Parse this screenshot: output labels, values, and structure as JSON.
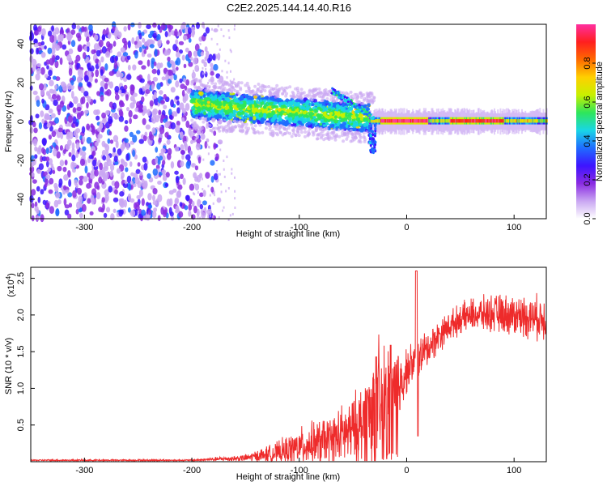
{
  "title": "C2E2.2025.144.14.40.R16",
  "colors": {
    "snr_line": "#ee2b2b",
    "colormap": [
      "#ffffff",
      "#c9a6f2",
      "#8a2be2",
      "#3d14ff",
      "#1f6cff",
      "#19d6e6",
      "#2ee65a",
      "#c8f000",
      "#ffd000",
      "#ff6a00",
      "#ff1f1f",
      "#ff2fa0"
    ]
  },
  "chart_data": [
    {
      "type": "heatmap",
      "name": "spectrogram",
      "xlabel": "Height of straight line (km)",
      "ylabel": "Frequency (Hz)",
      "xlim": [
        -350,
        130
      ],
      "ylim": [
        -50,
        50
      ],
      "x_ticks": [
        -300,
        -200,
        -100,
        0,
        100
      ],
      "y_ticks": [
        -40,
        -20,
        0,
        20,
        40
      ],
      "colorbar": {
        "label": "Normalized spectral amplitude",
        "range": [
          0,
          1
        ],
        "ticks": [
          "0.0",
          "0.2",
          "0.4",
          "0.6",
          "0.8"
        ]
      },
      "regions": [
        {
          "x": [
            -350,
            -200
          ],
          "freq": [
            -50,
            50
          ],
          "amplitude": [
            0.05,
            0.3
          ],
          "description": "scattered noise"
        },
        {
          "x": [
            -200,
            -40
          ],
          "freq_center": [
            9,
            2
          ],
          "amplitude": [
            0.3,
            0.5
          ]
        },
        {
          "x": [
            -40,
            130
          ],
          "freq_center": [
            1,
            0
          ],
          "amplitude": [
            0.5,
            0.95
          ]
        }
      ]
    },
    {
      "type": "line",
      "name": "snr",
      "xlabel": "Height of straight line (km)",
      "ylabel": "SNR (10 * v/v)",
      "y_scale_label": "(x10",
      "y_scale_exp": "4",
      "y_scale_suffix": ")",
      "xlim": [
        -350,
        130
      ],
      "ylim": [
        0,
        2.65
      ],
      "x_ticks": [
        -300,
        -200,
        -100,
        0,
        100
      ],
      "y_ticks": [
        "0.5",
        "1.0",
        "1.5",
        "2.0",
        "2.5"
      ],
      "envelope": {
        "x": [
          -350,
          -200,
          -150,
          -120,
          -100,
          -70,
          -50,
          -40,
          -30,
          -20,
          -10,
          -5,
          0,
          10,
          20,
          30,
          40,
          50,
          60,
          80,
          100,
          130
        ],
        "mean": [
          0.02,
          0.02,
          0.05,
          0.12,
          0.2,
          0.3,
          0.42,
          0.55,
          0.75,
          0.85,
          1.0,
          1.1,
          1.25,
          1.4,
          1.55,
          1.72,
          1.85,
          1.95,
          2.0,
          2.02,
          2.0,
          1.95
        ],
        "spread": [
          0.01,
          0.01,
          0.05,
          0.15,
          0.25,
          0.35,
          0.45,
          0.6,
          0.9,
          0.8,
          0.6,
          0.45,
          0.3,
          0.28,
          0.25,
          0.22,
          0.2,
          0.2,
          0.22,
          0.25,
          0.28,
          0.3
        ]
      }
    }
  ]
}
